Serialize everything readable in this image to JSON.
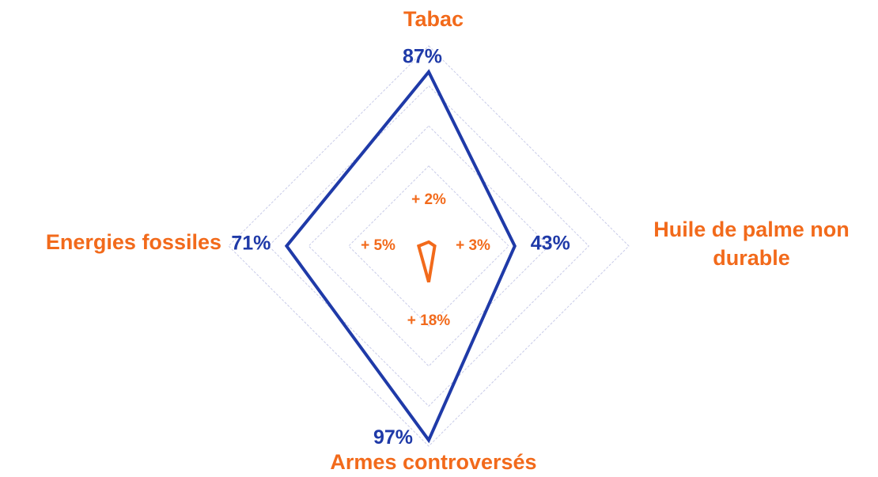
{
  "chart_data": {
    "type": "radar",
    "categories": [
      "Tabac",
      "Huile de palme non durable",
      "Armes controversés",
      "Energies fossiles"
    ],
    "rlim": [
      0,
      100
    ],
    "rticks": [
      40,
      60,
      80,
      100
    ],
    "grid": true,
    "series": [
      {
        "color": "#1f3aa8",
        "values": [
          87,
          43,
          97,
          71
        ],
        "value_labels": [
          "87%",
          "43%",
          "97%",
          "71%"
        ]
      },
      {
        "color": "#f26a1b",
        "values": [
          2,
          3,
          18,
          5
        ],
        "value_labels": [
          "+ 2%",
          "+ 3%",
          "+ 18%",
          "+ 5%"
        ]
      }
    ]
  }
}
